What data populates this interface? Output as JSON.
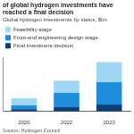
{
  "chart_data": {
    "type": "bar",
    "title": "of global hydrogen investments have reached a final decision",
    "subtitle": "Global hydrogen investments by status, $bn",
    "source": "Source: Hydrogen Council",
    "categories": [
      "2020",
      "2022",
      "2023"
    ],
    "series": [
      {
        "name": "Final investment decision",
        "color": "#0f3e77",
        "values": [
          15,
          30,
          45
        ]
      },
      {
        "name": "Front-end engineering design stage",
        "color": "#1e8ddc",
        "values": [
          25,
          90,
          145
        ]
      },
      {
        "name": "Feasibility stage",
        "color": "#9fd8f5",
        "values": [
          45,
          80,
          130
        ]
      }
    ],
    "ylim": [
      0,
      350
    ],
    "stacked": true,
    "grid": false,
    "legend": "top",
    "tick_labels": "x"
  }
}
